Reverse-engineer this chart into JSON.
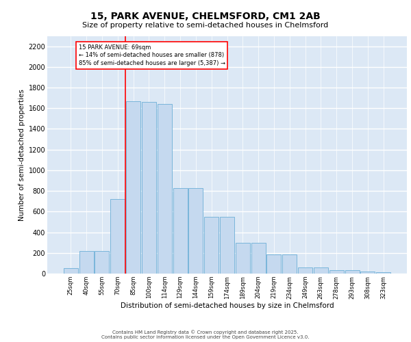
{
  "title1": "15, PARK AVENUE, CHELMSFORD, CM1 2AB",
  "title2": "Size of property relative to semi-detached houses in Chelmsford",
  "xlabel": "Distribution of semi-detached houses by size in Chelmsford",
  "ylabel": "Number of semi-detached properties",
  "categories": [
    "25sqm",
    "40sqm",
    "55sqm",
    "70sqm",
    "85sqm",
    "100sqm",
    "114sqm",
    "129sqm",
    "144sqm",
    "159sqm",
    "174sqm",
    "189sqm",
    "204sqm",
    "219sqm",
    "234sqm",
    "249sqm",
    "263sqm",
    "278sqm",
    "293sqm",
    "308sqm",
    "323sqm"
  ],
  "values": [
    50,
    220,
    220,
    720,
    1670,
    1660,
    1640,
    830,
    830,
    550,
    550,
    300,
    300,
    185,
    185,
    60,
    60,
    35,
    35,
    20,
    10
  ],
  "bar_color": "#c5d9ef",
  "bar_edge_color": "#6baed6",
  "background_color": "#dce8f5",
  "grid_color": "#ffffff",
  "annotation_text": "15 PARK AVENUE: 69sqm\n← 14% of semi-detached houses are smaller (878)\n85% of semi-detached houses are larger (5,387) →",
  "vline_index": 3.5,
  "ylim": [
    0,
    2300
  ],
  "yticks": [
    0,
    200,
    400,
    600,
    800,
    1000,
    1200,
    1400,
    1600,
    1800,
    2000,
    2200
  ],
  "footer1": "Contains HM Land Registry data © Crown copyright and database right 2025.",
  "footer2": "Contains public sector information licensed under the Open Government Licence v3.0."
}
